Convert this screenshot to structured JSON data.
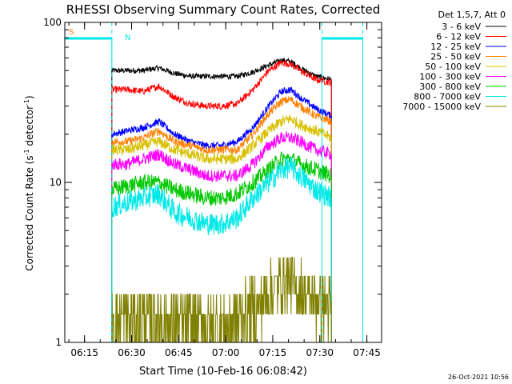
{
  "chart_data": {
    "type": "line",
    "title": "RHESSI Observing Summary Count Rates, Corrected",
    "xlabel": "Start Time (10-Feb-16 06:08:42)",
    "ylabel": "Corrected Count Rate (s⁻¹ detector⁻¹)",
    "ylabel_plain": "Corrected Count Rate (s",
    "ylabel_sup1": "-1",
    "ylabel_mid": " detector",
    "ylabel_sup2": "-1",
    "ylabel_end": ")",
    "yscale": "log",
    "ylim": [
      1,
      100
    ],
    "yticks": [
      {
        "v": 1,
        "label": "1"
      },
      {
        "v": 10,
        "label": "10"
      },
      {
        "v": 100,
        "label": "100"
      }
    ],
    "xlim_min": [
      0,
      101
    ],
    "xticks": [
      {
        "m": 6.3,
        "label": "06:15"
      },
      {
        "m": 21.3,
        "label": "06:30"
      },
      {
        "m": 36.3,
        "label": "06:45"
      },
      {
        "m": 51.3,
        "label": "07:00"
      },
      {
        "m": 66.3,
        "label": "07:15"
      },
      {
        "m": 81.3,
        "label": "07:30"
      },
      {
        "m": 96.3,
        "label": "07:45"
      }
    ],
    "legend_position": "right",
    "legend_header": "Det 1,5,7, Att 0",
    "series": [
      {
        "name": "3 - 6 keV",
        "color": "#000000",
        "points": [
          [
            15,
            50
          ],
          [
            20,
            50
          ],
          [
            25,
            50
          ],
          [
            30,
            52
          ],
          [
            35,
            48
          ],
          [
            40,
            46
          ],
          [
            45,
            46
          ],
          [
            50,
            46
          ],
          [
            55,
            46
          ],
          [
            60,
            49
          ],
          [
            65,
            54
          ],
          [
            69,
            58
          ],
          [
            72,
            57
          ],
          [
            75,
            52
          ],
          [
            80,
            46
          ],
          [
            85,
            44
          ]
        ]
      },
      {
        "name": "6 - 12 keV",
        "color": "#ff0000",
        "points": [
          [
            15,
            38
          ],
          [
            20,
            38
          ],
          [
            25,
            37
          ],
          [
            30,
            40
          ],
          [
            35,
            34
          ],
          [
            40,
            31
          ],
          [
            45,
            30
          ],
          [
            50,
            30
          ],
          [
            55,
            31
          ],
          [
            60,
            38
          ],
          [
            65,
            50
          ],
          [
            69,
            56
          ],
          [
            72,
            55
          ],
          [
            75,
            50
          ],
          [
            80,
            44
          ],
          [
            85,
            42
          ]
        ]
      },
      {
        "name": "12 - 25 keV",
        "color": "#0000ff",
        "points": [
          [
            15,
            20
          ],
          [
            20,
            21
          ],
          [
            25,
            22
          ],
          [
            30,
            24
          ],
          [
            35,
            20
          ],
          [
            40,
            18
          ],
          [
            45,
            17
          ],
          [
            50,
            17
          ],
          [
            55,
            18
          ],
          [
            60,
            22
          ],
          [
            65,
            30
          ],
          [
            69,
            37
          ],
          [
            72,
            38
          ],
          [
            75,
            34
          ],
          [
            80,
            29
          ],
          [
            85,
            26
          ]
        ]
      },
      {
        "name": "25 - 50 keV",
        "color": "#ff8000",
        "points": [
          [
            15,
            18
          ],
          [
            20,
            18
          ],
          [
            25,
            19
          ],
          [
            30,
            21
          ],
          [
            35,
            18
          ],
          [
            40,
            17
          ],
          [
            45,
            16
          ],
          [
            50,
            16
          ],
          [
            55,
            16
          ],
          [
            60,
            20
          ],
          [
            65,
            27
          ],
          [
            69,
            32
          ],
          [
            72,
            33
          ],
          [
            75,
            30
          ],
          [
            80,
            26
          ],
          [
            85,
            24
          ]
        ]
      },
      {
        "name": "50 - 100 keV",
        "color": "#d8c000",
        "points": [
          [
            15,
            16
          ],
          [
            20,
            16
          ],
          [
            25,
            17
          ],
          [
            30,
            18
          ],
          [
            35,
            16
          ],
          [
            40,
            15
          ],
          [
            45,
            14
          ],
          [
            50,
            14
          ],
          [
            55,
            14
          ],
          [
            60,
            17
          ],
          [
            65,
            21
          ],
          [
            69,
            24
          ],
          [
            72,
            25
          ],
          [
            75,
            23
          ],
          [
            80,
            21
          ],
          [
            85,
            19
          ]
        ]
      },
      {
        "name": "100 - 300 keV",
        "color": "#ff00ff",
        "points": [
          [
            15,
            13
          ],
          [
            20,
            13
          ],
          [
            25,
            14
          ],
          [
            30,
            15
          ],
          [
            35,
            13
          ],
          [
            40,
            12
          ],
          [
            45,
            11
          ],
          [
            50,
            11
          ],
          [
            55,
            11
          ],
          [
            60,
            13
          ],
          [
            65,
            17
          ],
          [
            69,
            19
          ],
          [
            72,
            19
          ],
          [
            75,
            18
          ],
          [
            80,
            16
          ],
          [
            85,
            15
          ]
        ]
      },
      {
        "name": "300 - 800 keV",
        "color": "#00c800",
        "points": [
          [
            15,
            9
          ],
          [
            20,
            9.5
          ],
          [
            25,
            10
          ],
          [
            30,
            10
          ],
          [
            35,
            9
          ],
          [
            40,
            8.5
          ],
          [
            45,
            8
          ],
          [
            50,
            8
          ],
          [
            55,
            8.5
          ],
          [
            60,
            10
          ],
          [
            65,
            12
          ],
          [
            69,
            14
          ],
          [
            72,
            14
          ],
          [
            75,
            13
          ],
          [
            80,
            12
          ],
          [
            85,
            11
          ]
        ]
      },
      {
        "name": "800 - 7000 keV",
        "color": "#00e8e8",
        "points": [
          [
            15,
            7
          ],
          [
            20,
            7.5
          ],
          [
            25,
            8
          ],
          [
            30,
            8.5
          ],
          [
            35,
            6.5
          ],
          [
            40,
            6
          ],
          [
            45,
            5.5
          ],
          [
            50,
            5.5
          ],
          [
            55,
            6
          ],
          [
            60,
            8
          ],
          [
            65,
            10
          ],
          [
            69,
            12
          ],
          [
            72,
            12.5
          ],
          [
            75,
            11
          ],
          [
            80,
            9
          ],
          [
            85,
            8
          ]
        ]
      },
      {
        "name": "7000 - 15000 keV",
        "color": "#808000",
        "points": [
          [
            15,
            1.5
          ],
          [
            20,
            1.5
          ],
          [
            25,
            1.5
          ],
          [
            30,
            1.5
          ],
          [
            35,
            1.4
          ],
          [
            40,
            1.3
          ],
          [
            45,
            1.3
          ],
          [
            50,
            1.3
          ],
          [
            55,
            1.5
          ],
          [
            60,
            1.8
          ],
          [
            65,
            2.2
          ],
          [
            69,
            2.6
          ],
          [
            72,
            2.6
          ],
          [
            75,
            2.3
          ],
          [
            80,
            2
          ],
          [
            85,
            1.8
          ]
        ]
      }
    ],
    "markers": [
      {
        "label": "S",
        "color": "#ff8000"
      },
      {
        "label": "N",
        "color": "#00e8e8"
      }
    ],
    "night_intervals": [
      [
        0,
        15
      ],
      [
        82,
        95
      ]
    ],
    "dashed_vlines": [
      15,
      82,
      95
    ],
    "timestamp": "26-Oct-2021 10:56"
  }
}
